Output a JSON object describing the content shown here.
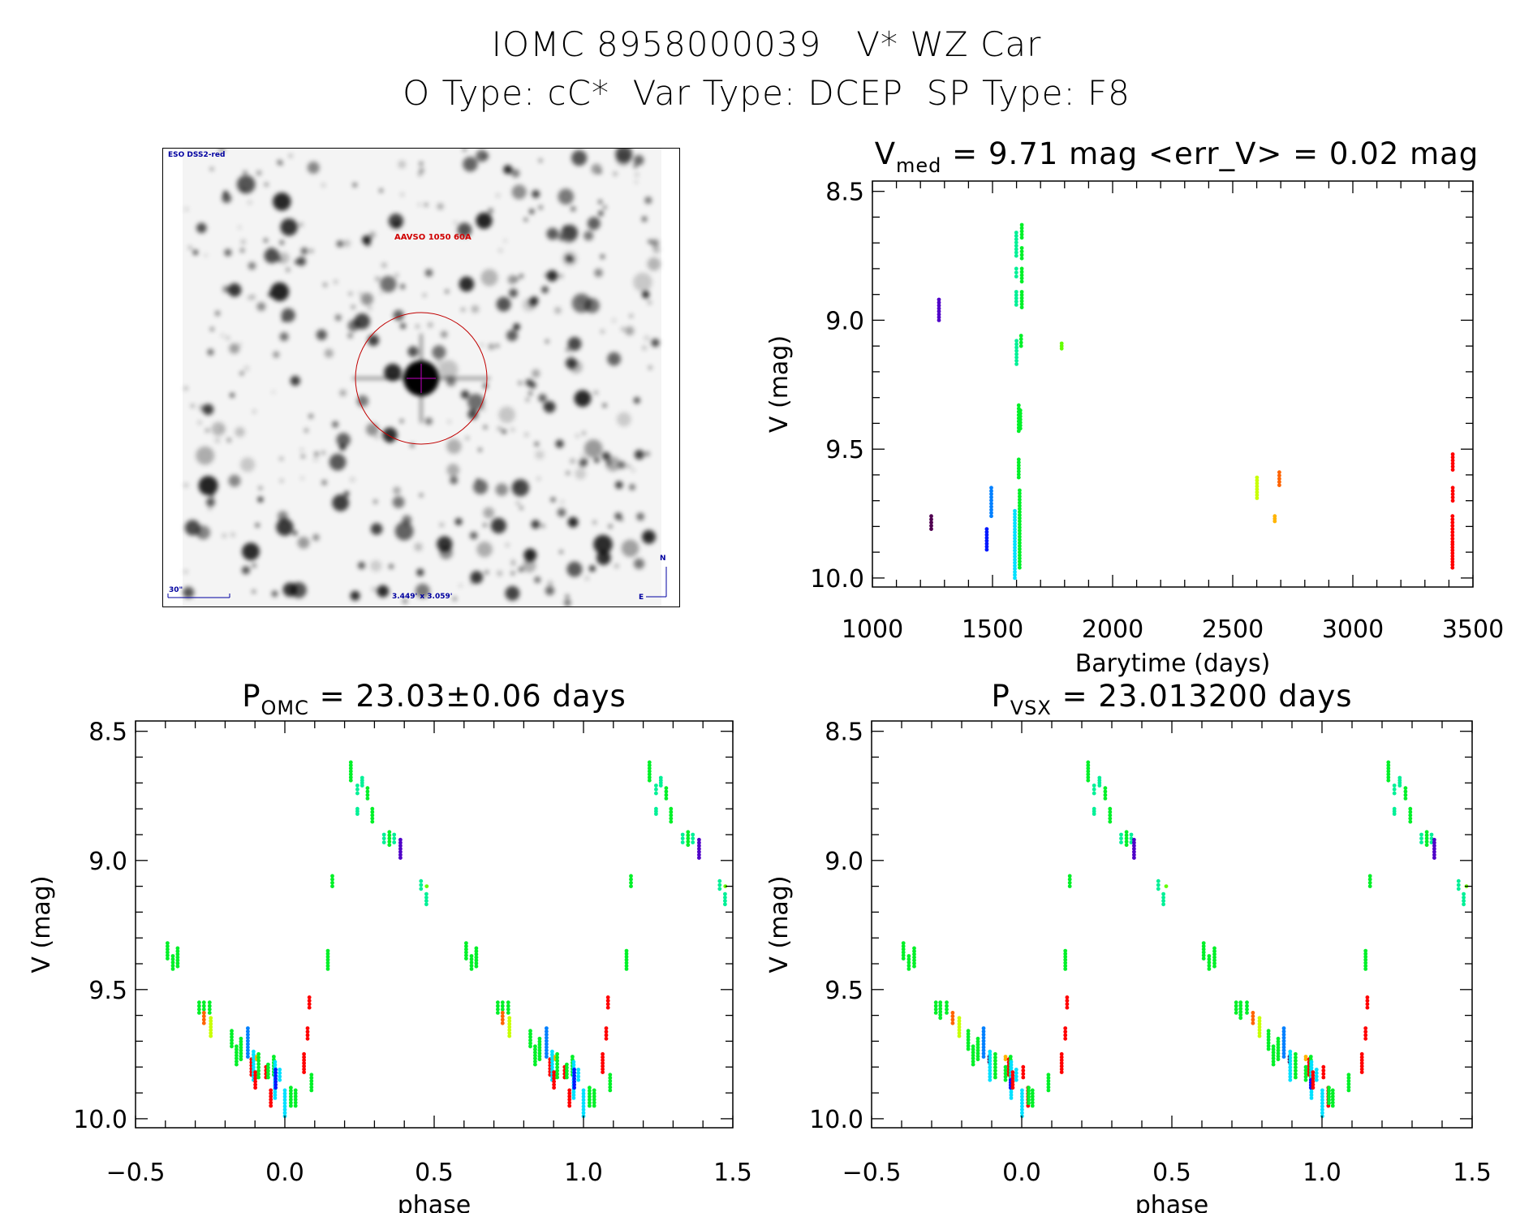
{
  "header": {
    "line1": "IOMC 8958000039   V* WZ Car",
    "line2": "O Type: cC*  Var Type: DCEP  SP Type: F8"
  },
  "finder": {
    "survey_label": "ESO DSS2-red",
    "target_label": "AAVSO 1050 60A",
    "scale_label": "30\"",
    "fov_label": "3.449' x 3.059'",
    "north_label": "N",
    "east_label": "E"
  },
  "colors": {
    "green": "#00f028",
    "aqua": "#00f096",
    "cyan": "#00e0ff",
    "azure": "#0080ff",
    "blue": "#0018ff",
    "violet": "#5000c8",
    "purple": "#500050",
    "yellowgreen": "#c8ff00",
    "lime": "#64ff00",
    "orange": "#ffb400",
    "orangered": "#ff6400",
    "red": "#ff0000",
    "circle": "#c00000",
    "finder_text": "#0000a0"
  },
  "chart_data": [
    {
      "id": "lightcurve",
      "type": "scatter",
      "title_main": "V",
      "title_sub": "med",
      "title_rest": " = 9.71 mag <err_V> = 0.02 mag",
      "xlabel": "Barytime (days)",
      "ylabel": "V (mag)",
      "xlim": [
        1000,
        3500
      ],
      "ylim": [
        8.46,
        10.035
      ],
      "xticks": [
        "1000",
        "1500",
        "2000",
        "2500",
        "3000",
        "3500"
      ],
      "xminor": 100,
      "yticks": [
        "8.5",
        "9.0",
        "9.5",
        "10.0"
      ],
      "yminor": 0.1,
      "clusters": [
        [
          1277,
          8.92,
          9.0,
          "violet"
        ],
        [
          1245,
          9.76,
          9.81,
          "purple"
        ],
        [
          1476,
          9.81,
          9.89,
          "blue"
        ],
        [
          1495,
          9.65,
          9.76,
          "azure"
        ],
        [
          1593,
          9.74,
          10.0,
          "cyan"
        ],
        [
          1599,
          8.66,
          8.75,
          "aqua"
        ],
        [
          1599,
          8.8,
          8.83,
          "aqua"
        ],
        [
          1599,
          8.89,
          8.94,
          "aqua"
        ],
        [
          1600,
          9.08,
          9.17,
          "aqua"
        ],
        [
          1622,
          8.63,
          8.68,
          "green"
        ],
        [
          1622,
          8.72,
          8.76,
          "green"
        ],
        [
          1622,
          8.8,
          8.85,
          "green"
        ],
        [
          1622,
          8.89,
          8.95,
          "green"
        ],
        [
          1619,
          9.06,
          9.1,
          "green"
        ],
        [
          1609,
          9.33,
          9.43,
          "green"
        ],
        [
          1616,
          9.35,
          9.42,
          "green"
        ],
        [
          1609,
          9.54,
          9.61,
          "green"
        ],
        [
          1613,
          9.66,
          9.96,
          "green"
        ],
        [
          1788,
          9.09,
          9.11,
          "lime"
        ],
        [
          2601,
          9.61,
          9.69,
          "yellowgreen"
        ],
        [
          2675,
          9.76,
          9.78,
          "orange"
        ],
        [
          2694,
          9.59,
          9.64,
          "orangered"
        ],
        [
          3416,
          9.52,
          9.58,
          "red"
        ],
        [
          3416,
          9.65,
          9.7,
          "red"
        ],
        [
          3415,
          9.76,
          9.86,
          "red"
        ],
        [
          3415,
          9.87,
          9.96,
          "red"
        ]
      ]
    },
    {
      "id": "phase-omc",
      "type": "scatter",
      "title_main": "P",
      "title_sub": "OMC",
      "title_rest": " = 23.03±0.06 days",
      "xlabel": "phase",
      "ylabel": "V (mag)",
      "xlim": [
        -0.5,
        1.5
      ],
      "ylim": [
        8.46,
        10.035
      ],
      "xticks": [
        "−0.5",
        "0.0",
        "0.5",
        "1.0",
        "1.5"
      ],
      "xminor": 0.1,
      "yticks": [
        "8.5",
        "9.0",
        "9.5",
        "10.0"
      ],
      "yminor": 0.1,
      "repeat_period": 1,
      "clusters": [
        [
          -0.393,
          9.32,
          9.38,
          "green"
        ],
        [
          -0.375,
          9.37,
          9.42,
          "green"
        ],
        [
          -0.359,
          9.34,
          9.41,
          "green"
        ],
        [
          -0.287,
          9.55,
          9.59,
          "green"
        ],
        [
          -0.271,
          9.55,
          9.59,
          "green"
        ],
        [
          -0.271,
          9.59,
          9.63,
          "orangered"
        ],
        [
          -0.252,
          9.55,
          9.59,
          "green"
        ],
        [
          -0.248,
          9.61,
          9.68,
          "yellowgreen"
        ],
        [
          -0.178,
          9.66,
          9.72,
          "green"
        ],
        [
          -0.162,
          9.72,
          9.79,
          "green"
        ],
        [
          -0.147,
          9.69,
          9.77,
          "green"
        ],
        [
          -0.124,
          9.65,
          9.76,
          "azure"
        ],
        [
          -0.112,
          9.77,
          9.83,
          "red"
        ],
        [
          -0.105,
          9.74,
          9.85,
          "cyan"
        ],
        [
          -0.099,
          9.82,
          9.88,
          "red"
        ],
        [
          -0.094,
          9.76,
          9.77,
          "orange"
        ],
        [
          -0.088,
          9.75,
          9.84,
          "green"
        ],
        [
          -0.063,
          9.8,
          9.84,
          "red"
        ],
        [
          -0.056,
          9.79,
          9.84,
          "green"
        ],
        [
          -0.037,
          9.76,
          9.83,
          "green"
        ],
        [
          -0.033,
          9.78,
          9.92,
          "cyan"
        ],
        [
          -0.031,
          9.81,
          9.88,
          "blue"
        ],
        [
          -0.047,
          9.89,
          9.95,
          "red"
        ],
        [
          -0.017,
          9.81,
          9.85,
          "cyan"
        ],
        [
          0.0,
          9.89,
          9.99,
          "cyan"
        ],
        [
          0.02,
          9.88,
          9.95,
          "green"
        ],
        [
          0.036,
          9.89,
          9.95,
          "green"
        ],
        [
          0.064,
          9.75,
          9.82,
          "red"
        ],
        [
          0.076,
          9.65,
          9.69,
          "red"
        ],
        [
          0.082,
          9.53,
          9.57,
          "red"
        ],
        [
          0.089,
          9.83,
          9.89,
          "green"
        ],
        [
          0.144,
          9.35,
          9.42,
          "green"
        ],
        [
          0.159,
          9.06,
          9.1,
          "green"
        ],
        [
          0.221,
          8.62,
          8.69,
          "green"
        ],
        [
          0.243,
          8.71,
          8.74,
          "aqua"
        ],
        [
          0.243,
          8.8,
          8.82,
          "aqua"
        ],
        [
          0.259,
          8.68,
          8.71,
          "aqua"
        ],
        [
          0.277,
          8.72,
          8.76,
          "green"
        ],
        [
          0.293,
          8.8,
          8.85,
          "green"
        ],
        [
          0.332,
          8.9,
          8.93,
          "aqua"
        ],
        [
          0.35,
          8.89,
          8.94,
          "green"
        ],
        [
          0.366,
          8.9,
          8.93,
          "aqua"
        ],
        [
          0.387,
          8.92,
          8.99,
          "violet"
        ],
        [
          0.456,
          9.08,
          9.11,
          "aqua"
        ],
        [
          0.475,
          9.1,
          9.1,
          "lime"
        ],
        [
          0.474,
          9.13,
          9.17,
          "aqua"
        ]
      ]
    },
    {
      "id": "phase-vsx",
      "type": "scatter",
      "title_main": "P",
      "title_sub": "VSX",
      "title_rest": " = 23.013200 days",
      "xlabel": "phase",
      "ylabel": "V (mag)",
      "xlim": [
        -0.5,
        1.5
      ],
      "ylim": [
        8.46,
        10.035
      ],
      "xticks": [
        "−0.5",
        "0.0",
        "0.5",
        "1.0",
        "1.5"
      ],
      "xminor": 0.1,
      "yticks": [
        "8.5",
        "9.0",
        "9.5",
        "10.0"
      ],
      "yminor": 0.1,
      "repeat_period": 1,
      "clusters": [
        [
          -0.394,
          9.32,
          9.38,
          "green"
        ],
        [
          -0.376,
          9.37,
          9.42,
          "green"
        ],
        [
          -0.358,
          9.34,
          9.41,
          "green"
        ],
        [
          -0.286,
          9.55,
          9.59,
          "green"
        ],
        [
          -0.271,
          9.55,
          9.61,
          "green"
        ],
        [
          -0.25,
          9.55,
          9.59,
          "green"
        ],
        [
          -0.23,
          9.59,
          9.63,
          "orangered"
        ],
        [
          -0.208,
          9.61,
          9.68,
          "yellowgreen"
        ],
        [
          -0.178,
          9.66,
          9.73,
          "green"
        ],
        [
          -0.162,
          9.72,
          9.79,
          "green"
        ],
        [
          -0.146,
          9.69,
          9.77,
          "green"
        ],
        [
          -0.127,
          9.65,
          9.76,
          "azure"
        ],
        [
          -0.108,
          9.76,
          9.78,
          "purple"
        ],
        [
          -0.106,
          9.74,
          9.85,
          "cyan"
        ],
        [
          -0.088,
          9.75,
          9.84,
          "green"
        ],
        [
          -0.054,
          9.76,
          9.77,
          "orange"
        ],
        [
          -0.054,
          9.8,
          9.85,
          "green"
        ],
        [
          -0.043,
          9.77,
          9.83,
          "red"
        ],
        [
          -0.037,
          9.76,
          9.84,
          "green"
        ],
        [
          -0.035,
          9.78,
          9.92,
          "cyan"
        ],
        [
          -0.037,
          9.85,
          9.88,
          "blue"
        ],
        [
          -0.03,
          9.82,
          9.88,
          "red"
        ],
        [
          -0.018,
          9.81,
          9.85,
          "cyan"
        ],
        [
          0.005,
          9.8,
          9.84,
          "red"
        ],
        [
          0.001,
          9.89,
          9.99,
          "cyan"
        ],
        [
          0.021,
          9.88,
          9.95,
          "red"
        ],
        [
          0.023,
          9.88,
          9.94,
          "green"
        ],
        [
          0.036,
          9.89,
          9.95,
          "green"
        ],
        [
          0.089,
          9.83,
          9.89,
          "green"
        ],
        [
          0.133,
          9.75,
          9.82,
          "red"
        ],
        [
          0.145,
          9.65,
          9.69,
          "red"
        ],
        [
          0.151,
          9.53,
          9.57,
          "red"
        ],
        [
          0.145,
          9.35,
          9.42,
          "green"
        ],
        [
          0.16,
          9.06,
          9.1,
          "green"
        ],
        [
          0.221,
          8.62,
          8.69,
          "green"
        ],
        [
          0.241,
          8.71,
          8.74,
          "aqua"
        ],
        [
          0.241,
          8.8,
          8.82,
          "aqua"
        ],
        [
          0.259,
          8.68,
          8.71,
          "aqua"
        ],
        [
          0.278,
          8.72,
          8.76,
          "green"
        ],
        [
          0.294,
          8.8,
          8.85,
          "green"
        ],
        [
          0.331,
          8.9,
          8.93,
          "aqua"
        ],
        [
          0.349,
          8.89,
          8.94,
          "green"
        ],
        [
          0.365,
          8.9,
          8.93,
          "aqua"
        ],
        [
          0.374,
          8.92,
          8.99,
          "violet"
        ],
        [
          0.455,
          9.08,
          9.11,
          "aqua"
        ],
        [
          0.481,
          9.1,
          9.1,
          "lime"
        ],
        [
          0.472,
          9.13,
          9.17,
          "aqua"
        ]
      ]
    }
  ]
}
